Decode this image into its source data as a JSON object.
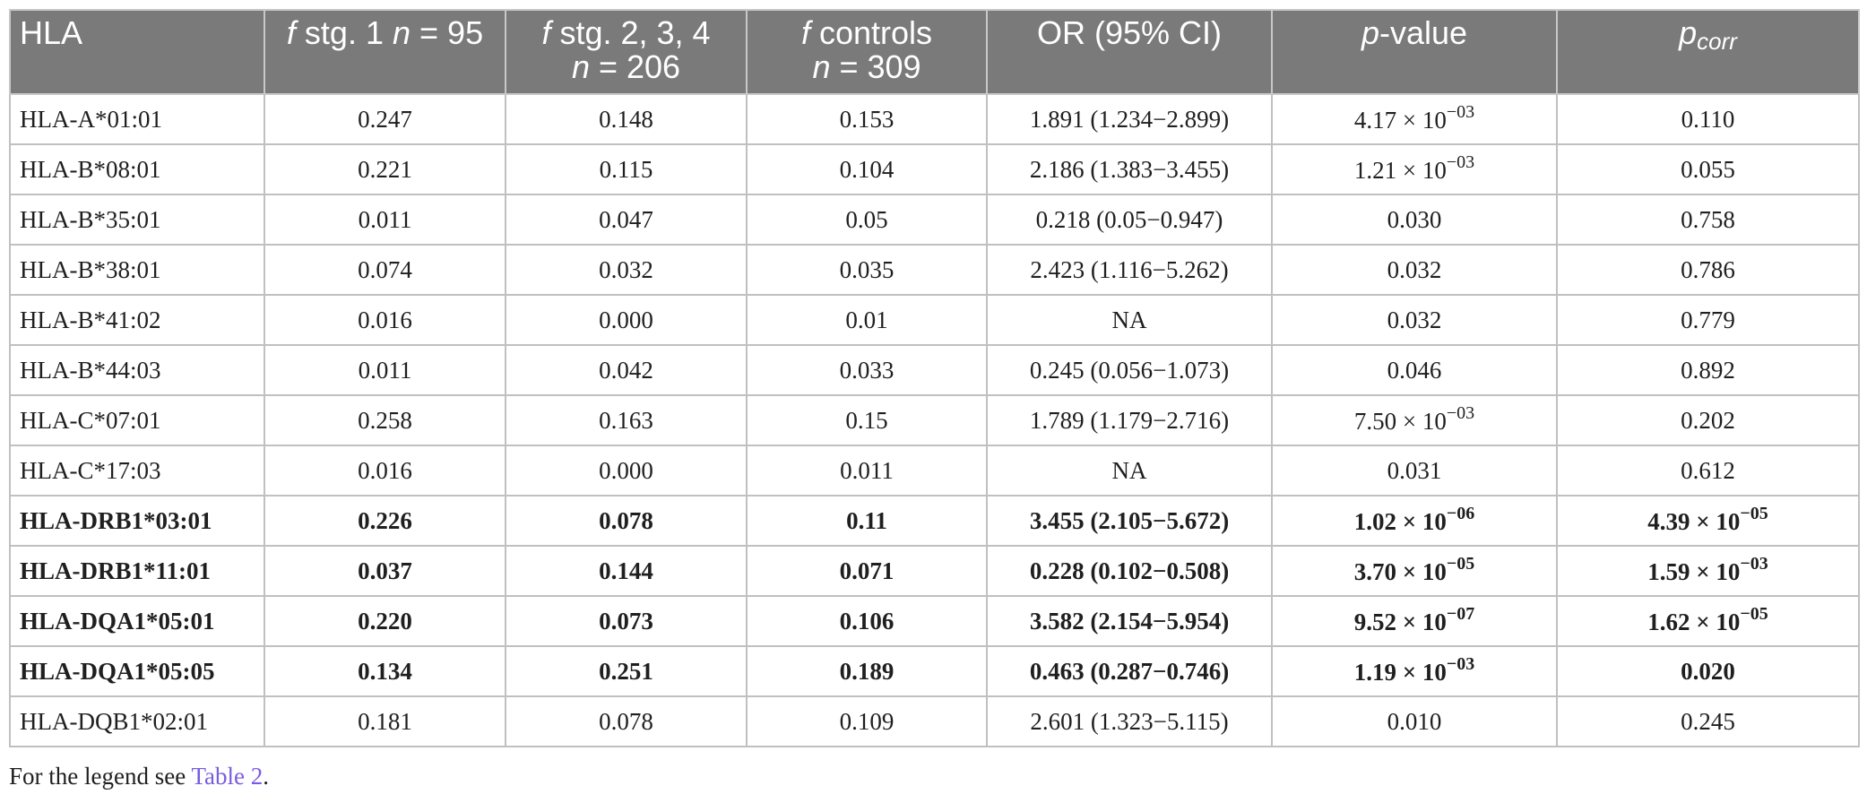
{
  "headers": {
    "hla": "HLA",
    "stg1_f": "f",
    "stg1_rest": " stg. 1 ",
    "stg1_n": "n",
    "stg1_eq": " = 95",
    "stg234_f": "f",
    "stg234_rest": " stg. 2, 3, 4",
    "stg234_n": "n",
    "stg234_eq": " = 206",
    "ctrl_f": "f",
    "ctrl_rest": " controls",
    "ctrl_n": "n",
    "ctrl_eq": " = 309",
    "or": "OR (95% CI)",
    "p_p": "p",
    "p_rest": "-value",
    "pcorr_p": "p",
    "pcorr_sub": "corr"
  },
  "rows": [
    {
      "hla": "HLA-A*01:01",
      "stg1": "0.247",
      "stg234": "0.148",
      "ctrl": "0.153",
      "or": "1.891 (1.234−2.899)",
      "p_base": "4.17 × 10",
      "p_exp": "−03",
      "pc_base": "0.110",
      "pc_exp": "",
      "bold": false
    },
    {
      "hla": "HLA-B*08:01",
      "stg1": "0.221",
      "stg234": "0.115",
      "ctrl": "0.104",
      "or": "2.186 (1.383−3.455)",
      "p_base": "1.21 × 10",
      "p_exp": "−03",
      "pc_base": "0.055",
      "pc_exp": "",
      "bold": false
    },
    {
      "hla": "HLA-B*35:01",
      "stg1": "0.011",
      "stg234": "0.047",
      "ctrl": "0.05",
      "or": "0.218 (0.05−0.947)",
      "p_base": "0.030",
      "p_exp": "",
      "pc_base": "0.758",
      "pc_exp": "",
      "bold": false
    },
    {
      "hla": "HLA-B*38:01",
      "stg1": "0.074",
      "stg234": "0.032",
      "ctrl": "0.035",
      "or": "2.423 (1.116−5.262)",
      "p_base": "0.032",
      "p_exp": "",
      "pc_base": "0.786",
      "pc_exp": "",
      "bold": false
    },
    {
      "hla": "HLA-B*41:02",
      "stg1": "0.016",
      "stg234": "0.000",
      "ctrl": "0.01",
      "or": "NA",
      "p_base": "0.032",
      "p_exp": "",
      "pc_base": "0.779",
      "pc_exp": "",
      "bold": false
    },
    {
      "hla": "HLA-B*44:03",
      "stg1": "0.011",
      "stg234": "0.042",
      "ctrl": "0.033",
      "or": "0.245 (0.056−1.073)",
      "p_base": "0.046",
      "p_exp": "",
      "pc_base": "0.892",
      "pc_exp": "",
      "bold": false
    },
    {
      "hla": "HLA-C*07:01",
      "stg1": "0.258",
      "stg234": "0.163",
      "ctrl": "0.15",
      "or": "1.789 (1.179−2.716)",
      "p_base": "7.50 × 10",
      "p_exp": "−03",
      "pc_base": "0.202",
      "pc_exp": "",
      "bold": false
    },
    {
      "hla": "HLA-C*17:03",
      "stg1": "0.016",
      "stg234": "0.000",
      "ctrl": "0.011",
      "or": "NA",
      "p_base": "0.031",
      "p_exp": "",
      "pc_base": "0.612",
      "pc_exp": "",
      "bold": false
    },
    {
      "hla": "HLA-DRB1*03:01",
      "stg1": "0.226",
      "stg234": "0.078",
      "ctrl": "0.11",
      "or": "3.455 (2.105−5.672)",
      "p_base": "1.02 × 10",
      "p_exp": "−06",
      "pc_base": "4.39 × 10",
      "pc_exp": "−05",
      "bold": true
    },
    {
      "hla": "HLA-DRB1*11:01",
      "stg1": "0.037",
      "stg234": "0.144",
      "ctrl": "0.071",
      "or": "0.228 (0.102−0.508)",
      "p_base": "3.70 × 10",
      "p_exp": "−05",
      "pc_base": "1.59 × 10",
      "pc_exp": "−03",
      "bold": true
    },
    {
      "hla": "HLA-DQA1*05:01",
      "stg1": "0.220",
      "stg234": "0.073",
      "ctrl": "0.106",
      "or": "3.582 (2.154−5.954)",
      "p_base": "9.52 × 10",
      "p_exp": "−07",
      "pc_base": "1.62 × 10",
      "pc_exp": "−05",
      "bold": true
    },
    {
      "hla": "HLA-DQA1*05:05",
      "stg1": "0.134",
      "stg234": "0.251",
      "ctrl": "0.189",
      "or": "0.463 (0.287−0.746)",
      "p_base": "1.19 × 10",
      "p_exp": "−03",
      "pc_base": "0.020",
      "pc_exp": "",
      "bold": true
    },
    {
      "hla": "HLA-DQB1*02:01",
      "stg1": "0.181",
      "stg234": "0.078",
      "ctrl": "0.109",
      "or": "2.601 (1.323−5.115)",
      "p_base": "0.010",
      "p_exp": "",
      "pc_base": "0.245",
      "pc_exp": "",
      "bold": false
    }
  ],
  "footnote": {
    "prefix": "For the legend see ",
    "link": "Table 2",
    "suffix": "."
  }
}
